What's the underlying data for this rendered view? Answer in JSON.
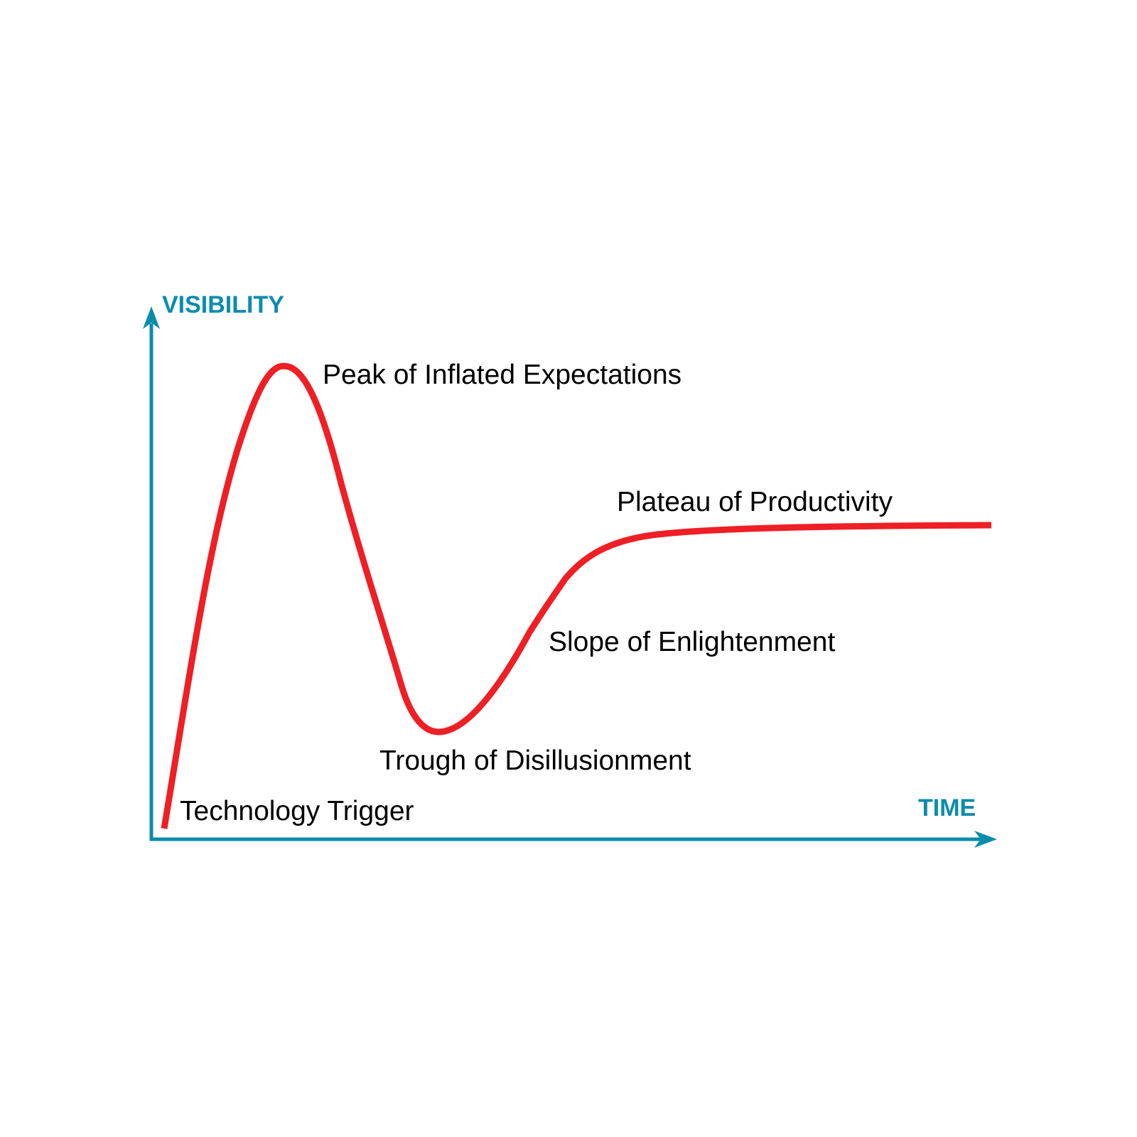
{
  "diagram": {
    "axes": {
      "y_label": "VISIBILITY",
      "x_label": "TIME"
    },
    "phases": [
      "Technology Trigger",
      "Peak of Inflated Expectations",
      "Trough of Disillusionment",
      "Slope of Enlightenment",
      "Plateau of Productivity"
    ],
    "colors": {
      "axis": "#0a8cad",
      "curve": "#ee1f25",
      "label_text": "#000000",
      "background": "#ffffff"
    }
  }
}
